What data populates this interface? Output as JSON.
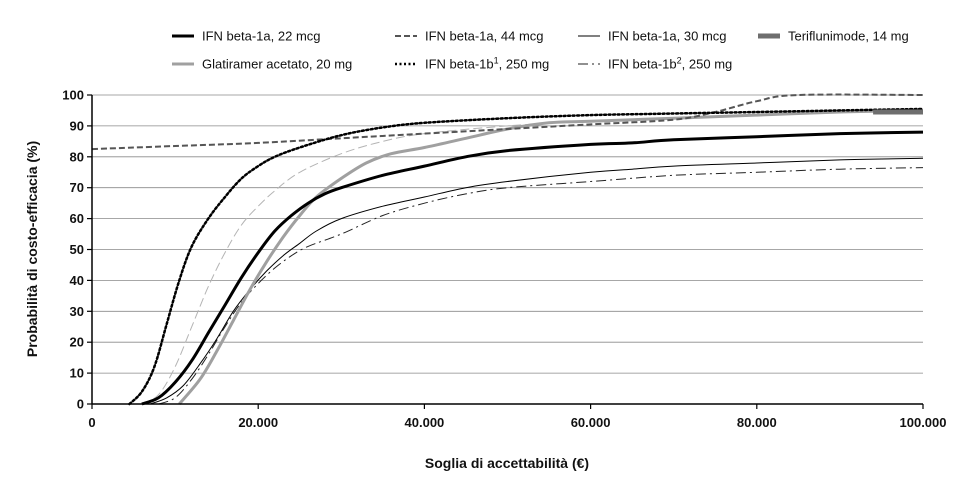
{
  "chart_data": {
    "type": "line",
    "title": "",
    "xlabel": "Soglia di accettabilità (€)",
    "ylabel": "Probabilità di costo-efficacia (%)",
    "xlim": [
      0,
      100000
    ],
    "ylim": [
      0,
      100
    ],
    "grid": true,
    "legend_position": "top",
    "x_ticks": [
      {
        "value": 0,
        "label": "0"
      },
      {
        "value": 20000,
        "label": "20.000"
      },
      {
        "value": 40000,
        "label": "40.000"
      },
      {
        "value": 60000,
        "label": "60.000"
      },
      {
        "value": 80000,
        "label": "80.000"
      },
      {
        "value": 100000,
        "label": "100.000"
      }
    ],
    "y_ticks": [
      {
        "value": 0,
        "label": "0"
      },
      {
        "value": 10,
        "label": "10"
      },
      {
        "value": 20,
        "label": "20"
      },
      {
        "value": 30,
        "label": "30"
      },
      {
        "value": 40,
        "label": "40"
      },
      {
        "value": 50,
        "label": "50"
      },
      {
        "value": 60,
        "label": "60"
      },
      {
        "value": 70,
        "label": "70"
      },
      {
        "value": 80,
        "label": "80"
      },
      {
        "value": 90,
        "label": "90"
      },
      {
        "value": 100,
        "label": "100"
      }
    ],
    "series": [
      {
        "id": "ifn-22",
        "name": "IFN beta-1a, 22 mcg",
        "color": "#000000",
        "width": 3,
        "dash": "",
        "points": [
          [
            6000,
            0
          ],
          [
            8000,
            2
          ],
          [
            10000,
            7
          ],
          [
            12000,
            14
          ],
          [
            14000,
            23
          ],
          [
            16000,
            32
          ],
          [
            18000,
            41
          ],
          [
            20000,
            49
          ],
          [
            22000,
            56
          ],
          [
            24000,
            61
          ],
          [
            26000,
            65
          ],
          [
            28000,
            68
          ],
          [
            30000,
            70
          ],
          [
            35000,
            74
          ],
          [
            40000,
            77
          ],
          [
            45000,
            80
          ],
          [
            50000,
            82
          ],
          [
            60000,
            84
          ],
          [
            65000,
            84.5
          ],
          [
            70000,
            85.5
          ],
          [
            80000,
            86.5
          ],
          [
            90000,
            87.5
          ],
          [
            100000,
            88
          ]
        ]
      },
      {
        "id": "ifn-44",
        "name": "IFN beta-1a, 44 mcg",
        "color": "#555555",
        "width": 2,
        "dash": "6,3",
        "points": [
          [
            0,
            82.5
          ],
          [
            10000,
            83.5
          ],
          [
            20000,
            84.5
          ],
          [
            30000,
            86
          ],
          [
            40000,
            87.5
          ],
          [
            50000,
            89
          ],
          [
            60000,
            90.5
          ],
          [
            70000,
            92
          ],
          [
            75000,
            94.5
          ],
          [
            80000,
            98
          ],
          [
            85000,
            100
          ],
          [
            100000,
            100
          ]
        ]
      },
      {
        "id": "ifn-30",
        "name": "IFN beta-1a, 30 mcg",
        "color": "#000000",
        "width": 1,
        "dash": "",
        "points": [
          [
            7000,
            0
          ],
          [
            9000,
            2
          ],
          [
            11000,
            6
          ],
          [
            13000,
            13
          ],
          [
            15000,
            21
          ],
          [
            17000,
            30
          ],
          [
            19000,
            37
          ],
          [
            21000,
            43
          ],
          [
            23000,
            48
          ],
          [
            25000,
            52
          ],
          [
            27000,
            56
          ],
          [
            30000,
            60
          ],
          [
            35000,
            64
          ],
          [
            40000,
            67
          ],
          [
            45000,
            70
          ],
          [
            50000,
            72
          ],
          [
            60000,
            75
          ],
          [
            65000,
            76
          ],
          [
            70000,
            77
          ],
          [
            80000,
            78
          ],
          [
            90000,
            79
          ],
          [
            100000,
            79.5
          ]
        ]
      },
      {
        "id": "teri-14",
        "name": "Teriflunimode, 14 mg",
        "color": "#6e6e6e",
        "width": 5,
        "dash": "",
        "points": [
          [
            94000,
            94.5
          ],
          [
            100000,
            94.5
          ]
        ]
      },
      {
        "id": "glat-20",
        "name": "Glatiramer acetato, 20 mg",
        "color": "#a0a0a0",
        "width": 3,
        "dash": "",
        "points": [
          [
            10500,
            0
          ],
          [
            13000,
            8
          ],
          [
            15000,
            17
          ],
          [
            17000,
            27
          ],
          [
            19000,
            37
          ],
          [
            21000,
            46
          ],
          [
            23000,
            54
          ],
          [
            25000,
            61
          ],
          [
            27000,
            67
          ],
          [
            30000,
            73
          ],
          [
            33000,
            78
          ],
          [
            36000,
            81
          ],
          [
            40000,
            83
          ],
          [
            45000,
            86
          ],
          [
            50000,
            89
          ],
          [
            55000,
            91
          ],
          [
            60000,
            91.5
          ],
          [
            70000,
            92.5
          ],
          [
            80000,
            93.5
          ],
          [
            90000,
            94.5
          ],
          [
            100000,
            95
          ]
        ]
      },
      {
        "id": "ifn-1b-1",
        "name": "IFN beta-1b",
        "sup": "1",
        "suffix": ", 250 mg",
        "color": "#000000",
        "width": 2.5,
        "dash": "2,2.5",
        "points": [
          [
            4500,
            0
          ],
          [
            6000,
            4
          ],
          [
            7500,
            12
          ],
          [
            9000,
            26
          ],
          [
            10500,
            40
          ],
          [
            12000,
            51
          ],
          [
            14000,
            60
          ],
          [
            16000,
            67
          ],
          [
            18000,
            73
          ],
          [
            20000,
            77
          ],
          [
            22000,
            80
          ],
          [
            25000,
            83
          ],
          [
            30000,
            87
          ],
          [
            35000,
            89.5
          ],
          [
            40000,
            91
          ],
          [
            50000,
            92.5
          ],
          [
            60000,
            93.5
          ],
          [
            70000,
            94
          ],
          [
            80000,
            94.5
          ],
          [
            90000,
            95
          ],
          [
            100000,
            95.5
          ]
        ]
      },
      {
        "id": "ifn-1b-2",
        "name": "IFN beta-1b",
        "sup": "2",
        "suffix": ", 250 mg",
        "color": "#222222",
        "width": 1,
        "dash": "10,4,2,4",
        "points": [
          [
            8000,
            0
          ],
          [
            10000,
            2
          ],
          [
            12000,
            8
          ],
          [
            14000,
            16
          ],
          [
            16000,
            25
          ],
          [
            18000,
            33
          ],
          [
            20000,
            39
          ],
          [
            22000,
            44
          ],
          [
            24000,
            48
          ],
          [
            26000,
            51
          ],
          [
            30000,
            55
          ],
          [
            35000,
            61
          ],
          [
            40000,
            65
          ],
          [
            45000,
            68
          ],
          [
            50000,
            70
          ],
          [
            60000,
            72
          ],
          [
            70000,
            74
          ],
          [
            80000,
            75
          ],
          [
            90000,
            76
          ],
          [
            100000,
            76.5
          ]
        ]
      },
      {
        "id": "light-dash",
        "name": "",
        "color": "#b4b4b4",
        "width": 1,
        "dash": "9,4",
        "points": [
          [
            6000,
            0
          ],
          [
            8000,
            3
          ],
          [
            10000,
            12
          ],
          [
            12000,
            25
          ],
          [
            14000,
            38
          ],
          [
            16000,
            49
          ],
          [
            18000,
            58
          ],
          [
            20000,
            64
          ],
          [
            22000,
            69
          ],
          [
            25000,
            75
          ],
          [
            30000,
            81
          ],
          [
            35000,
            85
          ],
          [
            40000,
            87.5
          ],
          [
            50000,
            90
          ],
          [
            60000,
            91.5
          ],
          [
            70000,
            92.5
          ],
          [
            80000,
            93.5
          ],
          [
            90000,
            94.5
          ],
          [
            100000,
            95
          ]
        ]
      }
    ]
  }
}
